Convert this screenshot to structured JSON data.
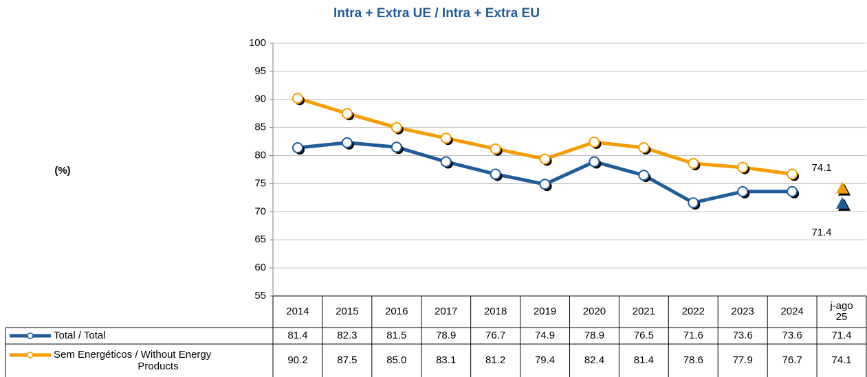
{
  "chart_data": {
    "type": "line",
    "title": "Intra + Extra UE / Intra + Extra EU",
    "y_label": "(%)",
    "categories": [
      "2014",
      "2015",
      "2016",
      "2017",
      "2018",
      "2019",
      "2020",
      "2021",
      "2022",
      "2023",
      "2024",
      "j-ago 25"
    ],
    "series": [
      {
        "name": "Total / Total",
        "color": "#1f5c99",
        "marker": "circle",
        "values": [
          81.4,
          82.3,
          81.5,
          78.9,
          76.7,
          74.9,
          78.9,
          76.5,
          71.6,
          73.6,
          73.6,
          71.4
        ],
        "value_labels": [
          "81.4",
          "82.3",
          "81.5",
          "78.9",
          "76.7",
          "74.9",
          "78.9",
          "76.5",
          "71.6",
          "73.6",
          "73.6",
          "71.4"
        ]
      },
      {
        "name": "Sem Energéticos / Without Energy Products",
        "color": "#f59c00",
        "marker": "circle",
        "values": [
          90.2,
          87.5,
          85.0,
          83.1,
          81.2,
          79.4,
          82.4,
          81.4,
          78.6,
          77.9,
          76.7,
          74.1
        ],
        "value_labels": [
          "90.2",
          "87.5",
          "85.0",
          "83.1",
          "81.2",
          "79.4",
          "82.4",
          "81.4",
          "78.6",
          "77.9",
          "76.7",
          "74.1"
        ]
      }
    ],
    "last_marker": "triangle",
    "ylim": [
      55,
      100
    ],
    "yticks": [
      55,
      60,
      65,
      70,
      75,
      80,
      85,
      90,
      95,
      100
    ],
    "grid": true,
    "data_table": true
  }
}
